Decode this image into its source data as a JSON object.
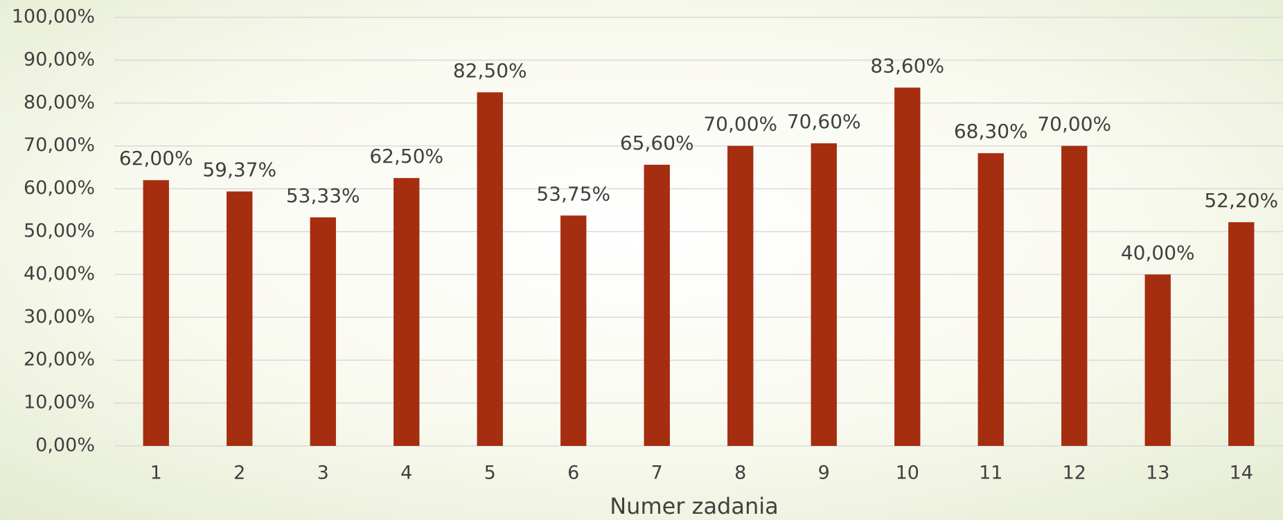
{
  "chart_data": {
    "type": "bar",
    "x_label": "Numer zadania",
    "categories": [
      "1",
      "2",
      "3",
      "4",
      "5",
      "6",
      "7",
      "8",
      "9",
      "10",
      "11",
      "12",
      "13",
      "14"
    ],
    "values": [
      62,
      59.37,
      53.33,
      62.5,
      82.5,
      53.75,
      65.6,
      70,
      70.6,
      83.6,
      68.3,
      70,
      40,
      52.2
    ],
    "value_labels": [
      "62,00%",
      "59,37%",
      "53,33%",
      "62,50%",
      "82,50%",
      "53,75%",
      "65,60%",
      "70,00%",
      "70,60%",
      "83,60%",
      "68,30%",
      "70,00%",
      "40,00%",
      "52,20%"
    ],
    "color": "#a52d10",
    "ylim": [
      0,
      100
    ],
    "yticks": [
      {
        "value": 0,
        "label": "0,00%"
      },
      {
        "value": 10,
        "label": "10,00%"
      },
      {
        "value": 20,
        "label": "20,00%"
      },
      {
        "value": 30,
        "label": "30,00%"
      },
      {
        "value": 40,
        "label": "40,00%"
      },
      {
        "value": 50,
        "label": "50,00%"
      },
      {
        "value": 60,
        "label": "60,00%"
      },
      {
        "value": 70,
        "label": "70,00%"
      },
      {
        "value": 80,
        "label": "80,00%"
      },
      {
        "value": 90,
        "label": "90,00%"
      },
      {
        "value": 100,
        "label": "100,00%"
      }
    ],
    "grid": true
  }
}
